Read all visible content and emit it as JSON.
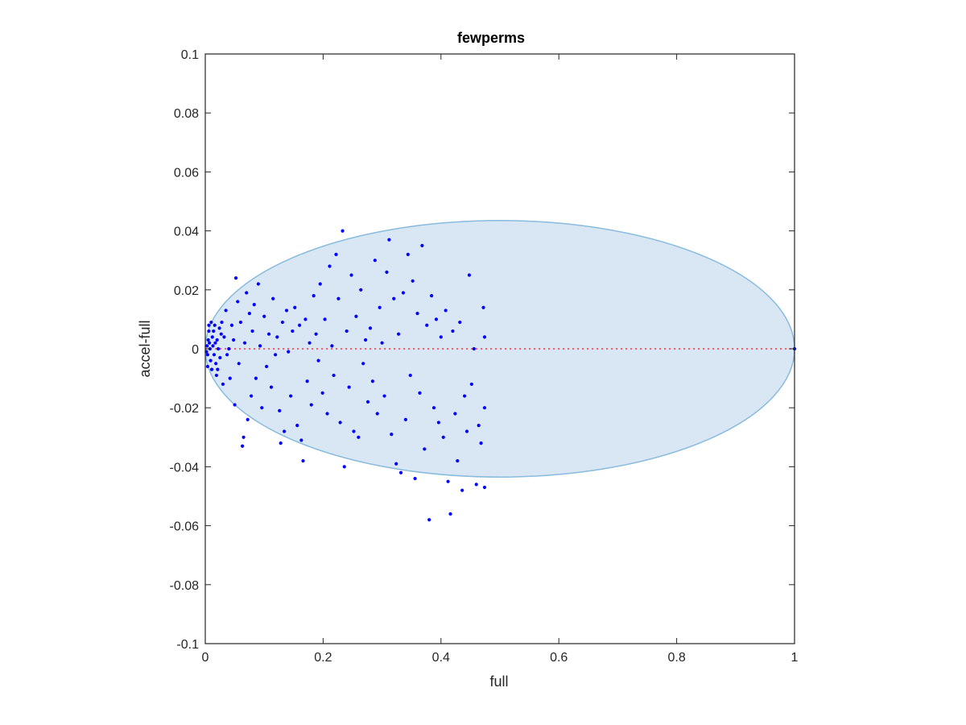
{
  "chart_data": {
    "type": "scatter",
    "title": "fewperms",
    "xlabel": "full",
    "ylabel": "accel-full",
    "xlim": [
      0,
      1
    ],
    "ylim": [
      -0.1,
      0.1
    ],
    "xticks": [
      0,
      0.2,
      0.4,
      0.6,
      0.8,
      1
    ],
    "xtick_labels": [
      "0",
      "0.2",
      "0.4",
      "0.6",
      "0.8",
      "1"
    ],
    "yticks": [
      0.1,
      0.08,
      0.06,
      0.04,
      0.02,
      0,
      -0.02,
      -0.04,
      -0.06,
      -0.08,
      -0.1
    ],
    "ytick_labels": [
      "0.1",
      "0.08",
      "0.06",
      "0.04",
      "0.02",
      "0",
      "-0.02",
      "-0.04",
      "-0.06",
      "-0.08",
      "-0.1"
    ],
    "grid": false,
    "colors": {
      "points": "#0000ff",
      "ellipse_fill": "#d8e7f3",
      "ellipse_edge": "#88bbdd",
      "reference_line": "#ff3333",
      "axes": "#262626"
    },
    "reference_line": {
      "y": 0,
      "x_range": [
        0,
        1
      ],
      "style": "dotted"
    },
    "ellipse": {
      "center": [
        0.5,
        0
      ],
      "x_range": [
        0,
        1
      ],
      "y_range": [
        -0.0435,
        0.0435
      ]
    },
    "series": [
      {
        "points": [
          [
            0.005,
            0.003
          ],
          [
            0.004,
            -0.002
          ],
          [
            0.006,
            0.006
          ],
          [
            0.008,
            0.0
          ],
          [
            0.003,
            0.001
          ],
          [
            0.009,
            -0.004
          ],
          [
            0.01,
            0.009
          ],
          [
            0.012,
            0.004
          ],
          [
            0.002,
            -0.001
          ],
          [
            0.007,
            0.002
          ],
          [
            0.011,
            -0.007
          ],
          [
            0.014,
            0.006
          ],
          [
            0.015,
            -0.002
          ],
          [
            0.016,
            0.008
          ],
          [
            0.018,
            -0.005
          ],
          [
            0.013,
            0.001
          ],
          [
            0.02,
            0.003
          ],
          [
            0.019,
            -0.009
          ],
          [
            0.022,
            0.0
          ],
          [
            0.024,
            0.007
          ],
          [
            0.025,
            -0.003
          ],
          [
            0.027,
            0.005
          ],
          [
            0.006,
            0.008
          ],
          [
            0.004,
            -0.006
          ],
          [
            0.017,
            0.002
          ],
          [
            0.021,
            -0.007
          ],
          [
            0.028,
            0.009
          ],
          [
            0.03,
            -0.012
          ],
          [
            0.032,
            0.004
          ],
          [
            0.035,
            0.013
          ],
          [
            0.037,
            -0.002
          ],
          [
            0.04,
            0.0
          ],
          [
            0.042,
            -0.01
          ],
          [
            0.045,
            0.008
          ],
          [
            0.048,
            0.003
          ],
          [
            0.05,
            -0.019
          ],
          [
            0.052,
            0.024
          ],
          [
            0.055,
            0.016
          ],
          [
            0.057,
            -0.005
          ],
          [
            0.06,
            0.009
          ],
          [
            0.063,
            -0.033
          ],
          [
            0.065,
            -0.03
          ],
          [
            0.067,
            0.002
          ],
          [
            0.07,
            0.019
          ],
          [
            0.072,
            -0.024
          ],
          [
            0.075,
            0.012
          ],
          [
            0.078,
            -0.016
          ],
          [
            0.08,
            0.006
          ],
          [
            0.083,
            0.015
          ],
          [
            0.086,
            -0.01
          ],
          [
            0.09,
            0.022
          ],
          [
            0.093,
            0.001
          ],
          [
            0.096,
            -0.02
          ],
          [
            0.1,
            0.011
          ],
          [
            0.104,
            -0.006
          ],
          [
            0.108,
            0.005
          ],
          [
            0.112,
            -0.013
          ],
          [
            0.115,
            0.017
          ],
          [
            0.119,
            -0.002
          ],
          [
            0.122,
            0.004
          ],
          [
            0.126,
            -0.021
          ],
          [
            0.128,
            -0.032
          ],
          [
            0.131,
            0.009
          ],
          [
            0.134,
            -0.028
          ],
          [
            0.138,
            0.013
          ],
          [
            0.141,
            -0.001
          ],
          [
            0.145,
            -0.016
          ],
          [
            0.148,
            0.006
          ],
          [
            0.152,
            0.014
          ],
          [
            0.156,
            -0.026
          ],
          [
            0.16,
            0.008
          ],
          [
            0.163,
            -0.031
          ],
          [
            0.166,
            -0.038
          ],
          [
            0.17,
            0.01
          ],
          [
            0.173,
            -0.011
          ],
          [
            0.177,
            0.002
          ],
          [
            0.18,
            -0.019
          ],
          [
            0.184,
            0.018
          ],
          [
            0.188,
            0.005
          ],
          [
            0.192,
            -0.004
          ],
          [
            0.195,
            0.022
          ],
          [
            0.199,
            -0.015
          ],
          [
            0.203,
            0.01
          ],
          [
            0.207,
            -0.022
          ],
          [
            0.211,
            0.028
          ],
          [
            0.215,
            0.001
          ],
          [
            0.218,
            -0.009
          ],
          [
            0.222,
            0.032
          ],
          [
            0.226,
            0.017
          ],
          [
            0.229,
            -0.025
          ],
          [
            0.233,
            0.04
          ],
          [
            0.236,
            -0.04
          ],
          [
            0.24,
            0.006
          ],
          [
            0.244,
            -0.013
          ],
          [
            0.248,
            0.025
          ],
          [
            0.252,
            -0.028
          ],
          [
            0.256,
            0.011
          ],
          [
            0.26,
            -0.03
          ],
          [
            0.264,
            0.02
          ],
          [
            0.268,
            -0.005
          ],
          [
            0.272,
            0.003
          ],
          [
            0.276,
            -0.018
          ],
          [
            0.28,
            0.007
          ],
          [
            0.284,
            -0.011
          ],
          [
            0.288,
            0.03
          ],
          [
            0.292,
            -0.022
          ],
          [
            0.296,
            0.014
          ],
          [
            0.3,
            0.002
          ],
          [
            0.304,
            -0.016
          ],
          [
            0.308,
            0.026
          ],
          [
            0.312,
            0.037
          ],
          [
            0.316,
            -0.029
          ],
          [
            0.32,
            0.017
          ],
          [
            0.324,
            -0.039
          ],
          [
            0.328,
            0.005
          ],
          [
            0.332,
            -0.042
          ],
          [
            0.336,
            0.019
          ],
          [
            0.34,
            -0.024
          ],
          [
            0.344,
            0.032
          ],
          [
            0.348,
            -0.009
          ],
          [
            0.352,
            0.023
          ],
          [
            0.356,
            -0.044
          ],
          [
            0.36,
            0.012
          ],
          [
            0.364,
            -0.015
          ],
          [
            0.368,
            0.035
          ],
          [
            0.372,
            -0.034
          ],
          [
            0.376,
            0.008
          ],
          [
            0.38,
            -0.058
          ],
          [
            0.384,
            0.018
          ],
          [
            0.388,
            -0.02
          ],
          [
            0.392,
            0.01
          ],
          [
            0.396,
            -0.025
          ],
          [
            0.4,
            0.004
          ],
          [
            0.404,
            -0.03
          ],
          [
            0.408,
            0.013
          ],
          [
            0.412,
            -0.045
          ],
          [
            0.416,
            -0.056
          ],
          [
            0.42,
            0.006
          ],
          [
            0.424,
            -0.022
          ],
          [
            0.428,
            -0.038
          ],
          [
            0.432,
            0.009
          ],
          [
            0.436,
            -0.048
          ],
          [
            0.44,
            -0.016
          ],
          [
            0.444,
            -0.028
          ],
          [
            0.448,
            0.025
          ],
          [
            0.452,
            -0.012
          ],
          [
            0.456,
            0.0
          ],
          [
            0.46,
            -0.046
          ],
          [
            0.464,
            -0.026
          ],
          [
            0.468,
            -0.032
          ],
          [
            0.472,
            0.014
          ],
          [
            0.474,
            -0.047
          ],
          [
            0.474,
            -0.02
          ],
          [
            0.474,
            0.004
          ],
          [
            1.0,
            0.0
          ]
        ]
      }
    ]
  }
}
